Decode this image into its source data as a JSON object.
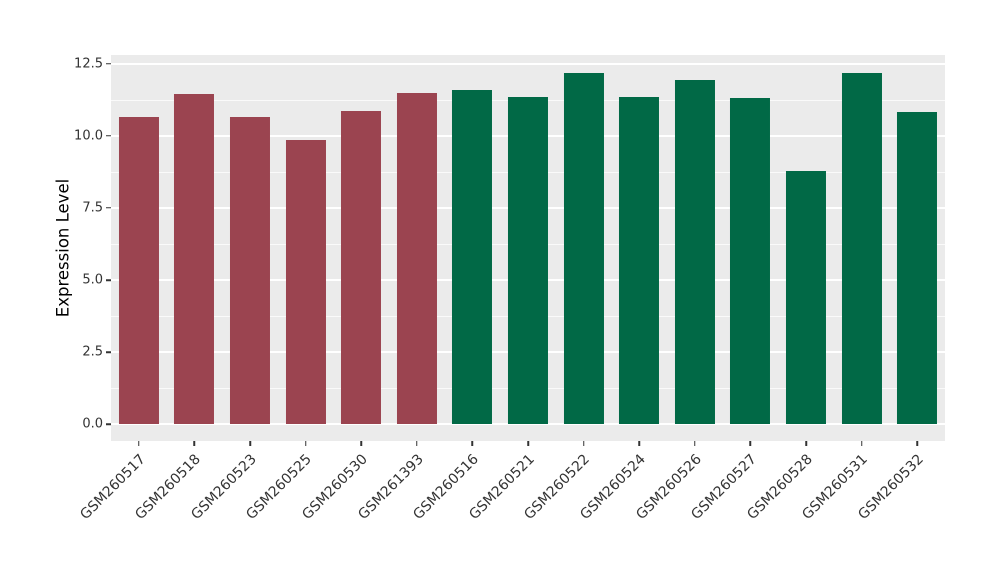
{
  "chart_data": {
    "type": "bar",
    "title": "",
    "xlabel": "",
    "ylabel": "Expression Level",
    "categories": [
      "GSM260517",
      "GSM260518",
      "GSM260523",
      "GSM260525",
      "GSM260530",
      "GSM261393",
      "GSM260516",
      "GSM260521",
      "GSM260522",
      "GSM260524",
      "GSM260526",
      "GSM260527",
      "GSM260528",
      "GSM260531",
      "GSM260532"
    ],
    "values": [
      10.65,
      11.45,
      10.66,
      9.87,
      10.85,
      11.5,
      11.6,
      11.33,
      12.18,
      11.33,
      11.93,
      11.3,
      8.78,
      12.17,
      10.82
    ],
    "bar_colors": [
      "#9b4450",
      "#9b4450",
      "#9b4450",
      "#9b4450",
      "#9b4450",
      "#9b4450",
      "#016946",
      "#016946",
      "#016946",
      "#016946",
      "#016946",
      "#016946",
      "#016946",
      "#016946",
      "#016946"
    ],
    "group_colors": {
      "group_1_maroon": "#9b4450",
      "group_2_green": "#016946"
    },
    "yticks": [
      0.0,
      2.5,
      5.0,
      7.5,
      10.0,
      12.5
    ],
    "ytick_labels": [
      "0.0",
      "2.5",
      "5.0",
      "7.5",
      "10.0",
      "12.5"
    ],
    "minor_gridlines": [
      1.25,
      3.75,
      6.25,
      8.75,
      11.25
    ],
    "ylim": [
      -0.58,
      12.8
    ],
    "x_label_rotation_deg": 45,
    "grid": "white-on-gray",
    "legend_position": "none",
    "panel_bg": "#EBEBEB",
    "gridline_color": "#FFFFFF",
    "tick_text_color": "#333333"
  }
}
